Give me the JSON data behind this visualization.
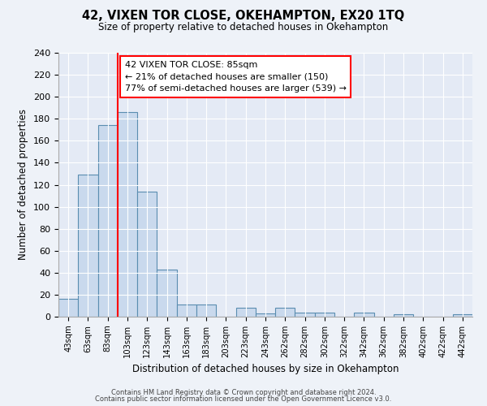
{
  "title": "42, VIXEN TOR CLOSE, OKEHAMPTON, EX20 1TQ",
  "subtitle": "Size of property relative to detached houses in Okehampton",
  "xlabel": "Distribution of detached houses by size in Okehampton",
  "ylabel": "Number of detached properties",
  "bar_labels": [
    "43sqm",
    "63sqm",
    "83sqm",
    "103sqm",
    "123sqm",
    "143sqm",
    "163sqm",
    "183sqm",
    "203sqm",
    "223sqm",
    "243sqm",
    "262sqm",
    "282sqm",
    "302sqm",
    "322sqm",
    "342sqm",
    "362sqm",
    "382sqm",
    "402sqm",
    "422sqm",
    "442sqm"
  ],
  "bar_values": [
    16,
    129,
    174,
    186,
    114,
    43,
    11,
    11,
    0,
    8,
    3,
    8,
    4,
    4,
    0,
    4,
    0,
    2,
    0,
    0,
    2
  ],
  "bar_color": "#c9d9ed",
  "bar_edge_color": "#5a8db0",
  "ylim": [
    0,
    240
  ],
  "yticks": [
    0,
    20,
    40,
    60,
    80,
    100,
    120,
    140,
    160,
    180,
    200,
    220,
    240
  ],
  "red_line_x": 2.5,
  "annotation_title": "42 VIXEN TOR CLOSE: 85sqm",
  "annotation_line1": "← 21% of detached houses are smaller (150)",
  "annotation_line2": "77% of semi-detached houses are larger (539) →",
  "footer_line1": "Contains HM Land Registry data © Crown copyright and database right 2024.",
  "footer_line2": "Contains public sector information licensed under the Open Government Licence v3.0.",
  "bg_color": "#eef2f8",
  "plot_bg_color": "#e4eaf5"
}
